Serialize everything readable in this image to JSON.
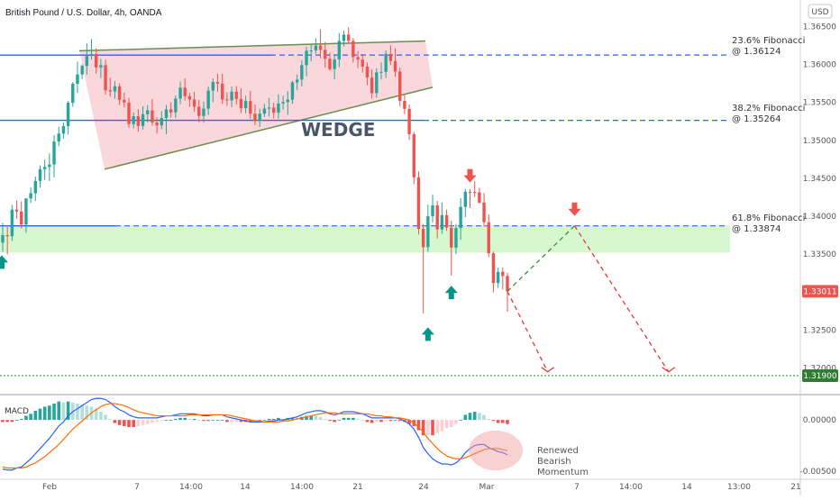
{
  "header": {
    "title": "British Pound / U.S. Dollar, 4h, OANDA",
    "currency": "USD"
  },
  "chart_data": {
    "type": "candlestick",
    "symbol": "GBPUSD",
    "y_axis": {
      "range": [
        1.3165,
        1.3685
      ],
      "ticks": [
        "1.36500",
        "1.36000",
        "1.35500",
        "1.35000",
        "1.34500",
        "1.34000",
        "1.33500",
        "1.33000",
        "1.32500",
        "1.32000"
      ]
    },
    "x_axis": {
      "ticks": [
        "Feb",
        "7",
        "14:00",
        "14",
        "14:00",
        "21",
        "24",
        "Mar",
        "7",
        "14:00",
        "14",
        "13:00",
        "21"
      ]
    },
    "levels": [
      {
        "label": "23.6% Fibonacci",
        "value_text": "@ 1.36124",
        "price": 1.36124
      },
      {
        "label": "38.2% Fibonacci",
        "value_text": "@ 1.35264",
        "price": 1.35264
      },
      {
        "label": "61.8% Fibonacci",
        "value_text": "@ 1.33874",
        "price": 1.33874
      }
    ],
    "support_zone": [
      1.3352,
      1.3388
    ],
    "target_level": {
      "price": 1.319,
      "label": "1.31900"
    },
    "last_price": {
      "price": 1.33011,
      "label": "1.33011"
    },
    "pattern_label": "WEDGE",
    "candles": [
      [
        1.33652,
        1.33915,
        1.33531,
        1.33751
      ],
      [
        1.33751,
        1.3386,
        1.33497,
        1.33736
      ],
      [
        1.33736,
        1.34152,
        1.33677,
        1.34087
      ],
      [
        1.34087,
        1.34207,
        1.33966,
        1.34063
      ],
      [
        1.34063,
        1.34197,
        1.33838,
        1.3389
      ],
      [
        1.3389,
        1.34238,
        1.33783,
        1.34234
      ],
      [
        1.34234,
        1.34378,
        1.34173,
        1.34303
      ],
      [
        1.34303,
        1.34521,
        1.34202,
        1.34465
      ],
      [
        1.34465,
        1.34671,
        1.34377,
        1.3462
      ],
      [
        1.3462,
        1.34745,
        1.34478,
        1.3465
      ],
      [
        1.3465,
        1.34828,
        1.34464,
        1.34682
      ],
      [
        1.34682,
        1.3507,
        1.34513,
        1.34985
      ],
      [
        1.34985,
        1.35181,
        1.34922,
        1.35089
      ],
      [
        1.35089,
        1.35237,
        1.35025,
        1.35188
      ],
      [
        1.35188,
        1.3552,
        1.35076,
        1.35496
      ],
      [
        1.35496,
        1.35769,
        1.35443,
        1.35745
      ],
      [
        1.35745,
        1.36037,
        1.35624,
        1.35869
      ],
      [
        1.35869,
        1.36001,
        1.35808,
        1.35982
      ],
      [
        1.35982,
        1.3628,
        1.35866,
        1.36112
      ],
      [
        1.36112,
        1.36336,
        1.36064,
        1.36138
      ],
      [
        1.36138,
        1.36214,
        1.3588,
        1.35961
      ],
      [
        1.35961,
        1.36076,
        1.35821,
        1.35991
      ],
      [
        1.35991,
        1.36062,
        1.35603,
        1.35661
      ],
      [
        1.35661,
        1.35828,
        1.35577,
        1.35644
      ],
      [
        1.35644,
        1.35781,
        1.35548,
        1.35713
      ],
      [
        1.35713,
        1.35751,
        1.35466,
        1.35534
      ],
      [
        1.35534,
        1.35629,
        1.35433,
        1.355
      ],
      [
        1.355,
        1.35561,
        1.35166,
        1.35215
      ],
      [
        1.35215,
        1.35367,
        1.35156,
        1.35318
      ],
      [
        1.35318,
        1.35409,
        1.35114,
        1.3519
      ],
      [
        1.3519,
        1.35453,
        1.35143,
        1.35345
      ],
      [
        1.35345,
        1.35463,
        1.35238,
        1.35396
      ],
      [
        1.35396,
        1.35542,
        1.35195,
        1.35236
      ],
      [
        1.35236,
        1.35308,
        1.35089,
        1.35197
      ],
      [
        1.35197,
        1.35385,
        1.3515,
        1.35295
      ],
      [
        1.35295,
        1.35466,
        1.35081,
        1.35409
      ],
      [
        1.35409,
        1.355,
        1.35302,
        1.35369
      ],
      [
        1.35369,
        1.35591,
        1.35294,
        1.3555
      ],
      [
        1.3555,
        1.35773,
        1.35479,
        1.35694
      ],
      [
        1.35694,
        1.35819,
        1.35524,
        1.35582
      ],
      [
        1.35582,
        1.35626,
        1.35442,
        1.35538
      ],
      [
        1.35538,
        1.3564,
        1.35377,
        1.35444
      ],
      [
        1.35444,
        1.35534,
        1.35239,
        1.35322
      ],
      [
        1.35322,
        1.35511,
        1.35232,
        1.35418
      ],
      [
        1.35418,
        1.35712,
        1.35334,
        1.35656
      ],
      [
        1.35656,
        1.35818,
        1.35505,
        1.3577
      ],
      [
        1.3577,
        1.35878,
        1.35641,
        1.35749
      ],
      [
        1.35749,
        1.35876,
        1.3548,
        1.35539
      ],
      [
        1.35539,
        1.35632,
        1.35455,
        1.35526
      ],
      [
        1.35526,
        1.35712,
        1.35436,
        1.35642
      ],
      [
        1.35642,
        1.35717,
        1.35471,
        1.35546
      ],
      [
        1.35546,
        1.35685,
        1.35358,
        1.35424
      ],
      [
        1.35424,
        1.3559,
        1.35357,
        1.35518
      ],
      [
        1.35518,
        1.35652,
        1.35281,
        1.35352
      ],
      [
        1.35352,
        1.35474,
        1.35199,
        1.35261
      ],
      [
        1.35261,
        1.35418,
        1.35176,
        1.35353
      ],
      [
        1.35353,
        1.35482,
        1.35308,
        1.3542
      ],
      [
        1.3542,
        1.35559,
        1.35315,
        1.35433
      ],
      [
        1.35433,
        1.35495,
        1.35288,
        1.35366
      ],
      [
        1.35366,
        1.35608,
        1.35287,
        1.35485
      ],
      [
        1.35485,
        1.35587,
        1.35403,
        1.35505
      ],
      [
        1.35505,
        1.35649,
        1.35337,
        1.35536
      ],
      [
        1.35536,
        1.35785,
        1.3548,
        1.35764
      ],
      [
        1.35764,
        1.35868,
        1.35664,
        1.358
      ],
      [
        1.358,
        1.36059,
        1.35712,
        1.35991
      ],
      [
        1.35991,
        1.36235,
        1.35846,
        1.36181
      ],
      [
        1.36181,
        1.36269,
        1.36043,
        1.36186
      ],
      [
        1.36186,
        1.36346,
        1.36142,
        1.36249
      ],
      [
        1.36249,
        1.36463,
        1.36082,
        1.36193
      ],
      [
        1.36193,
        1.36296,
        1.35959,
        1.36076
      ],
      [
        1.36076,
        1.36156,
        1.35917,
        1.3594
      ],
      [
        1.3594,
        1.36138,
        1.35804,
        1.36067
      ],
      [
        1.36067,
        1.36414,
        1.35965,
        1.36311
      ],
      [
        1.36311,
        1.36444,
        1.36238,
        1.36394
      ],
      [
        1.36394,
        1.36491,
        1.36278,
        1.36311
      ],
      [
        1.36311,
        1.36349,
        1.36026,
        1.36097
      ],
      [
        1.36097,
        1.36176,
        1.35953,
        1.36065
      ],
      [
        1.36065,
        1.36141,
        1.35892,
        1.35973
      ],
      [
        1.35973,
        1.36029,
        1.35727,
        1.35828
      ],
      [
        1.35828,
        1.35936,
        1.35549,
        1.35623
      ],
      [
        1.35623,
        1.3595,
        1.35561,
        1.35896
      ],
      [
        1.35896,
        1.36028,
        1.35802,
        1.35903
      ],
      [
        1.35903,
        1.36185,
        1.35825,
        1.3614
      ],
      [
        1.3614,
        1.36254,
        1.35992,
        1.36046
      ],
      [
        1.36046,
        1.36213,
        1.35837,
        1.35907
      ],
      [
        1.35907,
        1.35958,
        1.35452,
        1.3552
      ],
      [
        1.3552,
        1.35595,
        1.35345,
        1.35415
      ],
      [
        1.35415,
        1.35473,
        1.35006,
        1.35082
      ],
      [
        1.35082,
        1.35112,
        1.34422,
        1.34513
      ],
      [
        1.34513,
        1.3459,
        1.3376,
        1.33834
      ],
      [
        1.33834,
        1.33895,
        1.3272,
        1.33592
      ],
      [
        1.33592,
        1.34153,
        1.33531,
        1.34002
      ],
      [
        1.34002,
        1.34284,
        1.3392,
        1.34143
      ],
      [
        1.34143,
        1.34204,
        1.33708,
        1.33827
      ],
      [
        1.33827,
        1.34182,
        1.33769,
        1.34015
      ],
      [
        1.34015,
        1.34088,
        1.33807,
        1.3385
      ],
      [
        1.3385,
        1.33941,
        1.33217,
        1.33587
      ],
      [
        1.33587,
        1.33897,
        1.33502,
        1.33844
      ],
      [
        1.33844,
        1.3424,
        1.33692,
        1.34123
      ],
      [
        1.34123,
        1.34359,
        1.33988,
        1.34323
      ],
      [
        1.34323,
        1.34359,
        1.34108,
        1.34319
      ],
      [
        1.34319,
        1.34465,
        1.34252,
        1.34315
      ],
      [
        1.34315,
        1.34376,
        1.34164,
        1.3418
      ],
      [
        1.3418,
        1.34306,
        1.33862,
        1.33922
      ],
      [
        1.33922,
        1.34023,
        1.33461,
        1.33513
      ],
      [
        1.33513,
        1.33535,
        1.32996,
        1.33121
      ],
      [
        1.33121,
        1.33324,
        1.33055,
        1.33268
      ],
      [
        1.33268,
        1.33325,
        1.33033,
        1.33213
      ],
      [
        1.33213,
        1.33255,
        1.3274,
        1.33011
      ]
    ],
    "projection": {
      "path1": [
        [
          1.33011,
          0
        ],
        [
          1.3195,
          6
        ]
      ],
      "path2": [
        [
          1.33011,
          0
        ],
        [
          1.33874,
          10
        ],
        [
          1.3195,
          24
        ]
      ]
    },
    "macd": {
      "title": "MACD",
      "range": [
        -0.0058,
        0.0023
      ],
      "ticks": [
        "0.00000",
        "-0.00500"
      ],
      "macd_line": [
        -0.0048,
        -0.0049,
        -0.0049,
        -0.0047,
        -0.0046,
        -0.0042,
        -0.0038,
        -0.0033,
        -0.0028,
        -0.0023,
        -0.0018,
        -0.0012,
        -0.0006,
        -0.0002,
        0.0004,
        0.0008,
        0.0011,
        0.0014,
        0.0017,
        0.002,
        0.0021,
        0.0021,
        0.002,
        0.0017,
        0.0013,
        0.001,
        0.0008,
        0.0005,
        0.0003,
        0.0002,
        0.0002,
        0.0002,
        0.0002,
        0.0002,
        0.0003,
        0.0004,
        0.0004,
        0.0005,
        0.0006,
        0.0006,
        0.0006,
        0.0006,
        0.0005,
        0.0004,
        0.0004,
        0.0005,
        0.0005,
        0.0005,
        0.0003,
        0.0002,
        0.0001,
        0.0,
        -0.0001,
        -0.0002,
        -0.0002,
        -0.0002,
        -0.0002,
        -0.0001,
        -0.0001,
        0.0,
        0.0,
        0.0001,
        0.0002,
        0.0003,
        0.0005,
        0.0007,
        0.0008,
        0.0009,
        0.0009,
        0.0008,
        0.0006,
        0.0005,
        0.0006,
        0.0008,
        0.0008,
        0.0008,
        0.0007,
        0.0006,
        0.0004,
        0.0002,
        0.0002,
        0.0002,
        0.0002,
        0.0002,
        0.0002,
        0.0001,
        -0.0001,
        -0.0004,
        -0.0009,
        -0.0017,
        -0.0027,
        -0.0033,
        -0.0038,
        -0.0041,
        -0.0043,
        -0.0043,
        -0.0044,
        -0.0042,
        -0.0038,
        -0.0032,
        -0.0028,
        -0.0025,
        -0.0024,
        -0.0024,
        -0.0027,
        -0.0029,
        -0.0031,
        -0.0032,
        -0.0034
      ],
      "signal_line": [
        -0.0046,
        -0.0047,
        -0.0047,
        -0.0047,
        -0.0047,
        -0.0046,
        -0.0044,
        -0.0042,
        -0.0039,
        -0.0036,
        -0.0032,
        -0.0028,
        -0.0024,
        -0.0019,
        -0.0014,
        -0.0009,
        -0.0005,
        -0.0001,
        0.0003,
        0.0007,
        0.001,
        0.0013,
        0.0015,
        0.0016,
        0.0016,
        0.0015,
        0.0014,
        0.0012,
        0.001,
        0.0008,
        0.0007,
        0.0006,
        0.0005,
        0.0004,
        0.0004,
        0.0004,
        0.0004,
        0.0004,
        0.0004,
        0.0004,
        0.0005,
        0.0005,
        0.0005,
        0.0005,
        0.0005,
        0.0005,
        0.0005,
        0.0005,
        0.0005,
        0.0004,
        0.0003,
        0.0002,
        0.0001,
        0.0,
        -0.0001,
        -0.0001,
        -0.0002,
        -0.0002,
        -0.0002,
        -0.0002,
        -0.0001,
        -0.0001,
        0.0,
        0.0001,
        0.0002,
        0.0003,
        0.0004,
        0.0005,
        0.0006,
        0.0007,
        0.0007,
        0.0007,
        0.0006,
        0.0006,
        0.0006,
        0.0006,
        0.0006,
        0.0006,
        0.0006,
        0.0005,
        0.0004,
        0.0004,
        0.0003,
        0.0003,
        0.0002,
        0.0002,
        0.0001,
        0.0,
        -0.0003,
        -0.0007,
        -0.0012,
        -0.0018,
        -0.0023,
        -0.0028,
        -0.0032,
        -0.0035,
        -0.0037,
        -0.0038,
        -0.0038,
        -0.0037,
        -0.0035,
        -0.0033,
        -0.0031,
        -0.0029,
        -0.0028,
        -0.0028,
        -0.0028,
        -0.0029,
        -0.003
      ]
    },
    "annotations": [
      {
        "type": "arrow-down",
        "candle": 100
      },
      {
        "type": "arrow-up",
        "candle": 91
      },
      {
        "type": "arrow-up",
        "candle": 96
      },
      {
        "type": "arrow-up",
        "candle": 0
      },
      {
        "type": "arrow-down",
        "projection_bar": 10
      }
    ],
    "note": [
      "Renewed",
      "Bearish",
      "Momentum"
    ]
  },
  "colors": {
    "up": "#26a69a",
    "down": "#ef5350",
    "fib_line": "#2962ff",
    "wedge_fill": "#f8c9cd",
    "wedge_line": "#6b8e4e",
    "zone": "#d7f7d0",
    "macd_line": "#2962ff",
    "signal_line": "#ff6d00",
    "proj_red": "#e53935",
    "proj_green": "#388e3c",
    "target_line": "#388e3c"
  }
}
